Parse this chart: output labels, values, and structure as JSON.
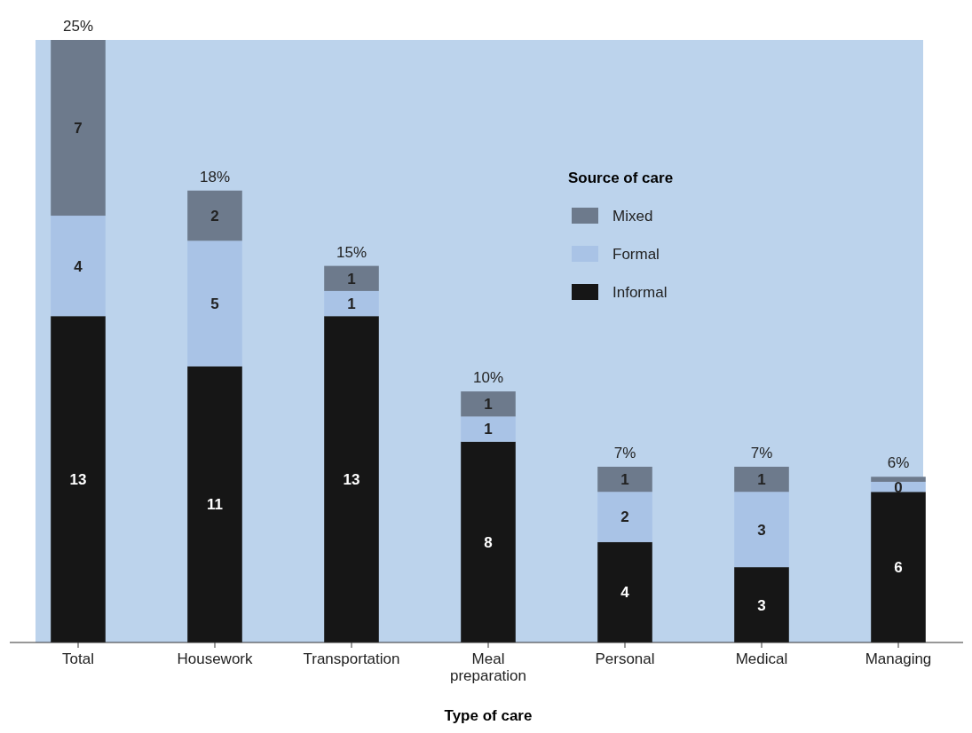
{
  "chart_data": {
    "type": "bar",
    "stacked": true,
    "xlabel": "Type of care",
    "legend_title": "Source of care",
    "legend": "top right",
    "categories": [
      "Total",
      "Housework",
      "Transportation",
      "Meal preparation",
      "Personal",
      "Medical",
      "Managing"
    ],
    "series": [
      {
        "name": "Informal",
        "color": "#161616",
        "values": [
          13,
          11,
          13,
          8,
          4,
          3,
          6
        ],
        "value_labels": [
          "13",
          "11",
          "13",
          "8",
          "4",
          "3",
          "6"
        ]
      },
      {
        "name": "Formal",
        "color": "#a9c3e6",
        "values": [
          4,
          5,
          1,
          1,
          2,
          3,
          0.4
        ],
        "value_labels": [
          "4",
          "5",
          "1",
          "1",
          "2",
          "3",
          "0"
        ]
      },
      {
        "name": "Mixed",
        "color": "#6d7a8c",
        "values": [
          7,
          2,
          1,
          1,
          1,
          1,
          0.2
        ],
        "value_labels": [
          "7",
          "2",
          "1",
          "1",
          "1",
          "1",
          null
        ]
      }
    ],
    "totals": [
      "25%",
      "18%",
      "15%",
      "10%",
      "7%",
      "7%",
      "6%"
    ],
    "ylim": [
      0,
      24
    ],
    "tick_labels": "x"
  }
}
